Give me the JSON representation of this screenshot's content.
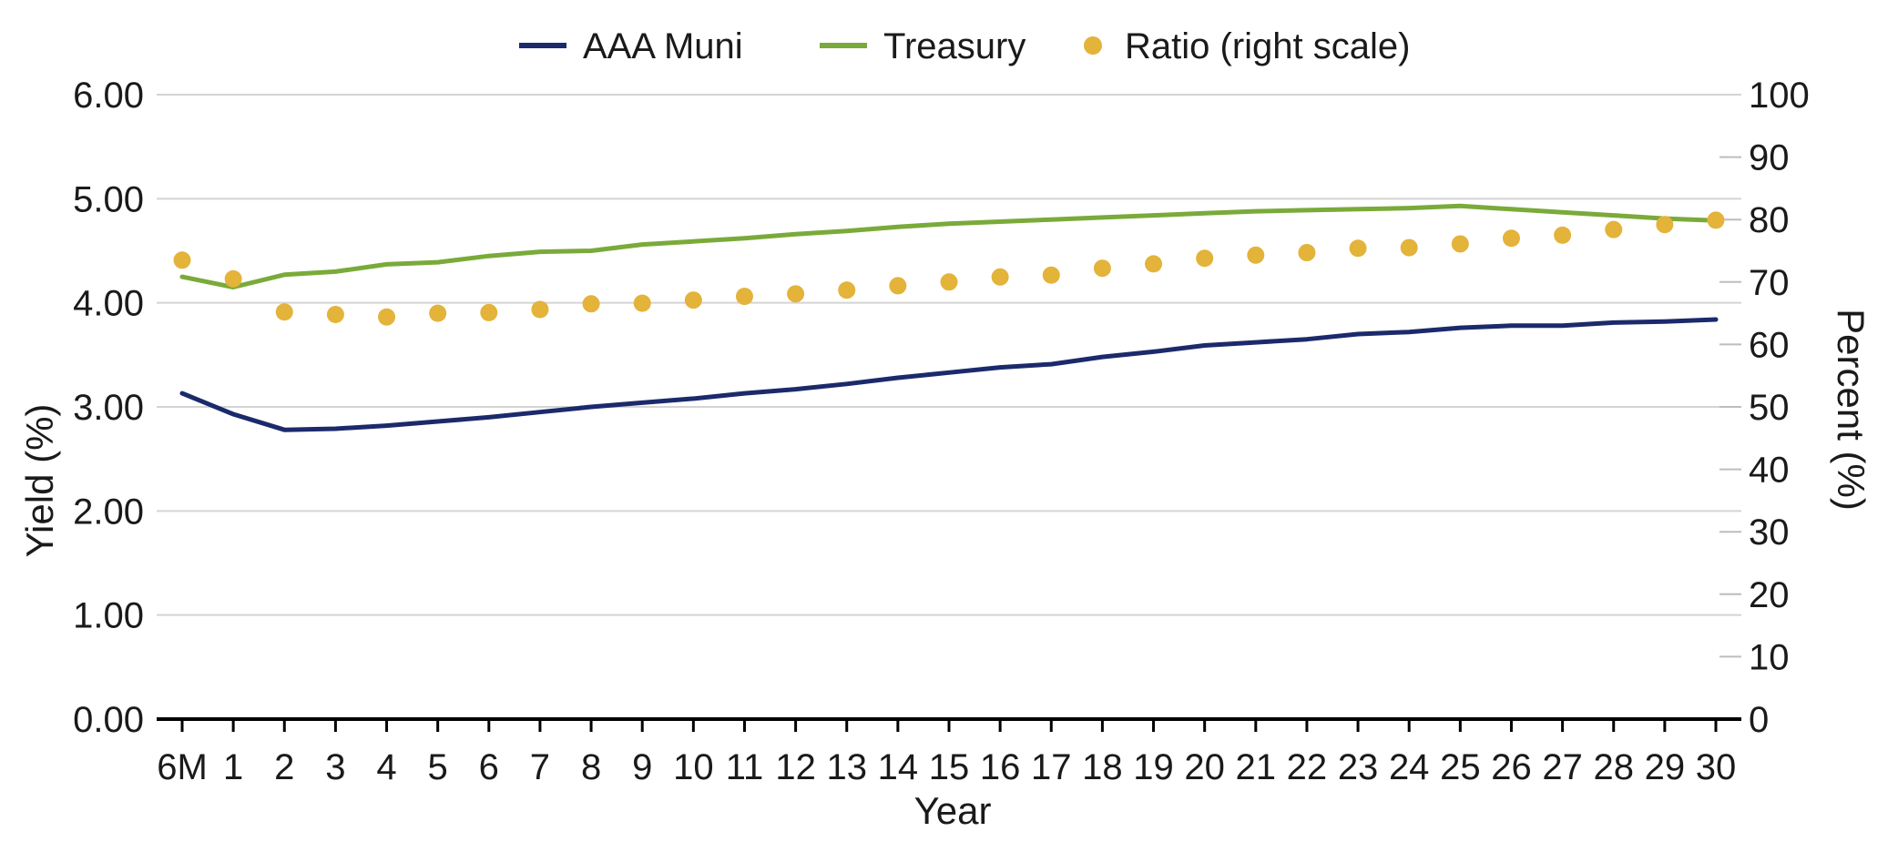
{
  "chart_data": {
    "type": "line",
    "x_categories": [
      "6M",
      "1",
      "2",
      "3",
      "4",
      "5",
      "6",
      "7",
      "8",
      "9",
      "10",
      "11",
      "12",
      "13",
      "14",
      "15",
      "16",
      "17",
      "18",
      "19",
      "20",
      "21",
      "22",
      "23",
      "24",
      "25",
      "26",
      "27",
      "28",
      "29",
      "30"
    ],
    "xlabel": "Year",
    "ylabel_left": "Yield (%)",
    "ylabel_right": "Percent (%)",
    "ylim_left": [
      0,
      6
    ],
    "ylim_right": [
      0,
      100
    ],
    "yticks_left": [
      "0.00",
      "1.00",
      "2.00",
      "3.00",
      "4.00",
      "5.00",
      "6.00"
    ],
    "yticks_right": [
      "0",
      "10",
      "20",
      "30",
      "40",
      "50",
      "60",
      "70",
      "80",
      "90",
      "100"
    ],
    "grid": true,
    "legend_position": "top-center",
    "series": [
      {
        "name": "AAA Muni",
        "type": "line",
        "axis": "left",
        "color": "#1b2a6b",
        "values": [
          3.13,
          2.93,
          2.78,
          2.79,
          2.82,
          2.86,
          2.9,
          2.95,
          3.0,
          3.04,
          3.08,
          3.13,
          3.17,
          3.22,
          3.28,
          3.33,
          3.38,
          3.41,
          3.48,
          3.53,
          3.59,
          3.62,
          3.65,
          3.7,
          3.72,
          3.76,
          3.78,
          3.78,
          3.81,
          3.82,
          3.84
        ]
      },
      {
        "name": "Treasury",
        "type": "line",
        "axis": "left",
        "color": "#7aaa3a",
        "values": [
          4.25,
          4.15,
          4.27,
          4.3,
          4.37,
          4.39,
          4.45,
          4.49,
          4.5,
          4.56,
          4.59,
          4.62,
          4.66,
          4.69,
          4.73,
          4.76,
          4.78,
          4.8,
          4.82,
          4.84,
          4.86,
          4.88,
          4.89,
          4.9,
          4.91,
          4.93,
          4.9,
          4.87,
          4.84,
          4.81,
          4.79
        ]
      },
      {
        "name": "Ratio (right scale)",
        "type": "scatter",
        "axis": "right",
        "color": "#e3b33a",
        "values": [
          73.5,
          70.5,
          65.2,
          64.8,
          64.4,
          65.0,
          65.1,
          65.6,
          66.5,
          66.6,
          67.1,
          67.7,
          68.1,
          68.7,
          69.4,
          70.0,
          70.8,
          71.1,
          72.2,
          72.9,
          73.8,
          74.3,
          74.7,
          75.4,
          75.5,
          76.1,
          77.0,
          77.5,
          78.4,
          79.2,
          79.9
        ]
      }
    ]
  }
}
